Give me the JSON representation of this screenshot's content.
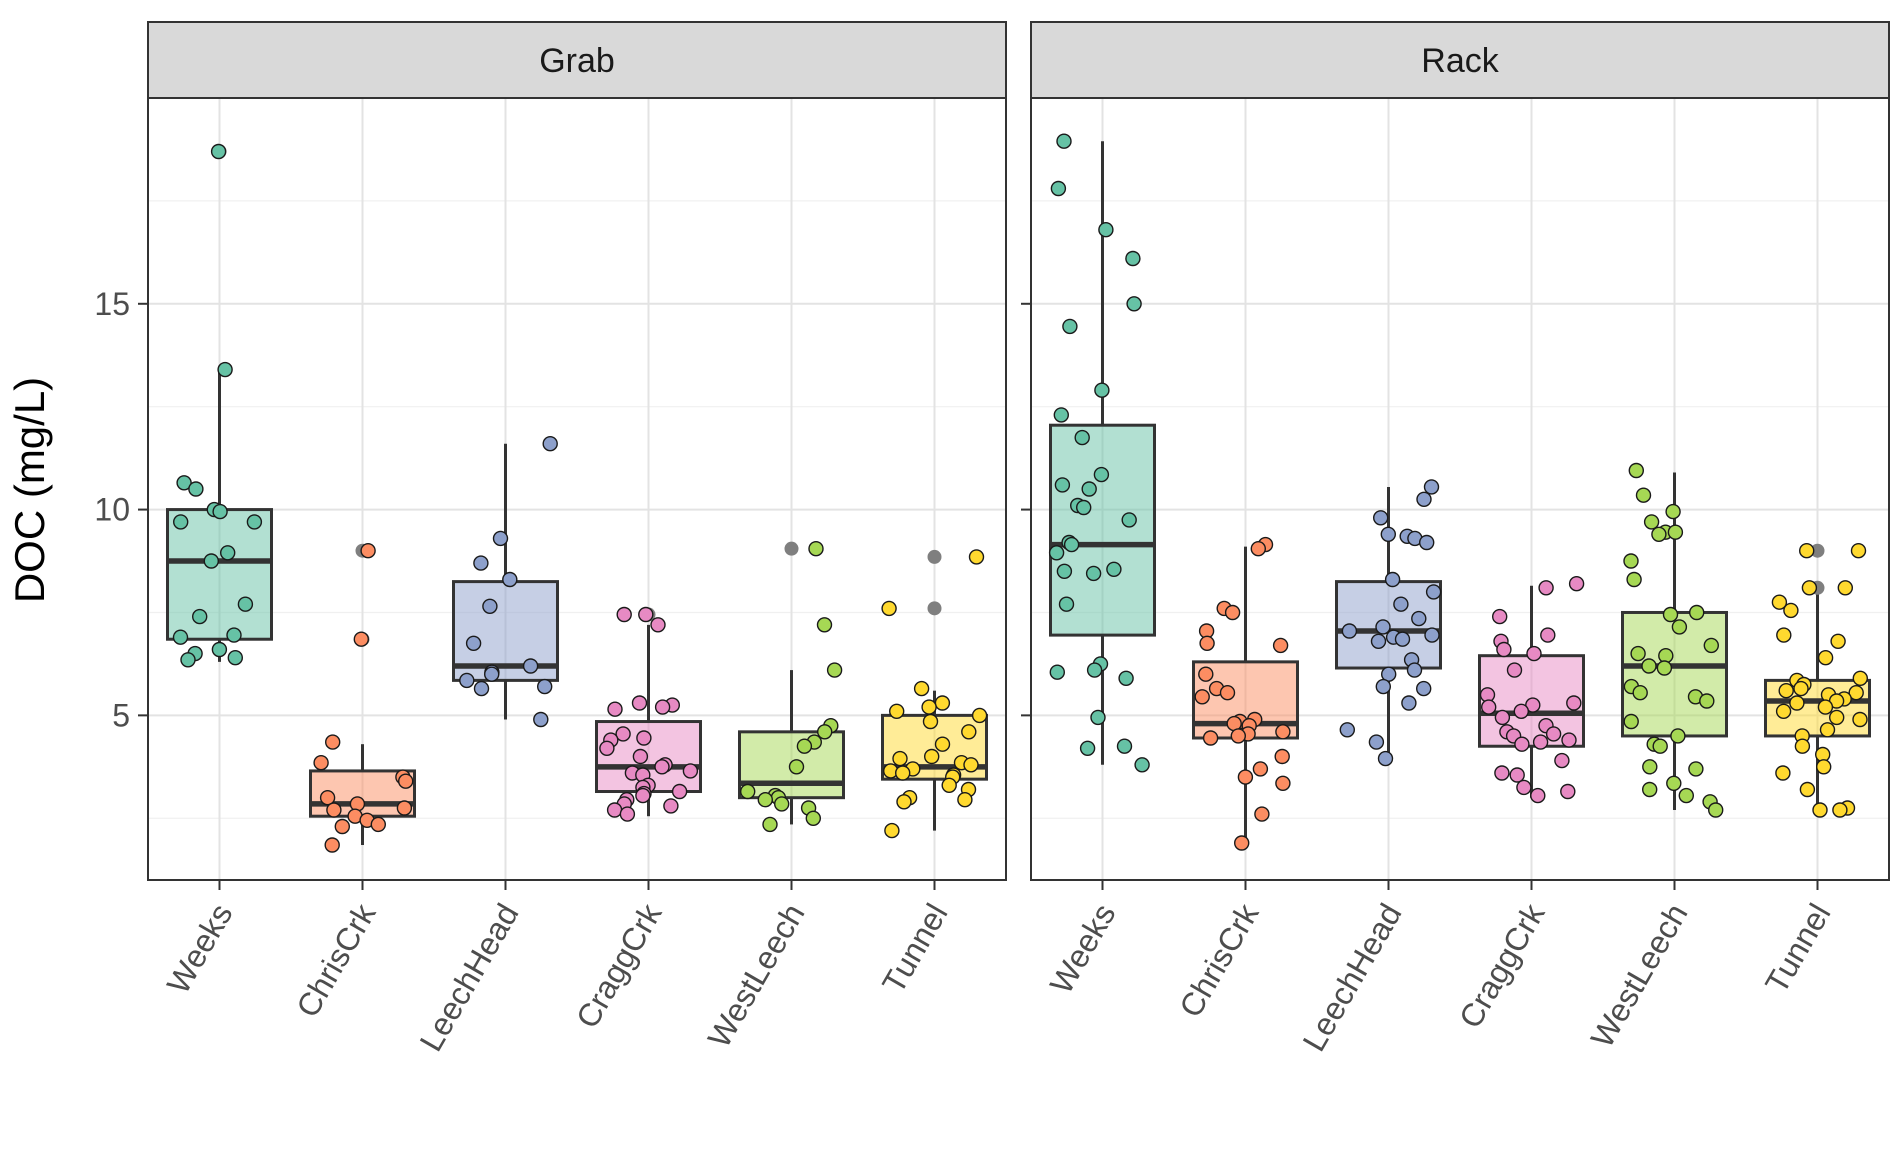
{
  "chart_data": {
    "type": "boxplot",
    "ylabel": "DOC (mg/L)",
    "xlabel": "",
    "ylim": [
      1.0,
      20.0
    ],
    "yticks": [
      5,
      10,
      15
    ],
    "grid": true,
    "categories": [
      "Weeks",
      "ChrisCrk",
      "LeechHead",
      "CraggCrk",
      "WestLeech",
      "Tunnel"
    ],
    "colors": [
      "#66c2a5",
      "#fc8d62",
      "#8da0cb",
      "#e78ac3",
      "#a6d854",
      "#ffd92f"
    ],
    "outlier_color": "#7f7f7f",
    "panels": [
      {
        "title": "Grab",
        "groups": [
          {
            "name": "Weeks",
            "q1": 6.85,
            "median": 8.75,
            "q3": 10.0,
            "whisker_low": 6.3,
            "whisker_high": 13.4,
            "outliers": [
              18.7
            ],
            "points": [
              18.7,
              13.4,
              10.65,
              10.5,
              10.0,
              9.95,
              9.7,
              9.7,
              8.95,
              8.75,
              7.4,
              7.7,
              6.95,
              6.9,
              6.6,
              6.5,
              6.4,
              6.35
            ]
          },
          {
            "name": "ChrisCrk",
            "q1": 2.55,
            "median": 2.85,
            "q3": 3.65,
            "whisker_low": 1.85,
            "whisker_high": 4.3,
            "outliers": [
              9.0,
              6.85
            ],
            "points": [
              9.0,
              6.85,
              4.35,
              3.85,
              3.5,
              3.4,
              3.0,
              2.85,
              2.75,
              2.7,
              2.55,
              2.45,
              2.35,
              2.3,
              1.85
            ]
          },
          {
            "name": "LeechHead",
            "q1": 5.85,
            "median": 6.2,
            "q3": 8.25,
            "whisker_low": 4.9,
            "whisker_high": 11.6,
            "outliers": [],
            "points": [
              11.6,
              9.3,
              8.7,
              8.3,
              7.65,
              6.75,
              6.2,
              6.05,
              6.0,
              5.85,
              5.7,
              5.65,
              4.9
            ]
          },
          {
            "name": "CraggCrk",
            "q1": 3.15,
            "median": 3.75,
            "q3": 4.85,
            "whisker_low": 2.55,
            "whisker_high": 7.2,
            "outliers": [
              7.45
            ],
            "points": [
              7.45,
              7.45,
              7.2,
              5.3,
              5.25,
              5.2,
              5.15,
              4.55,
              4.45,
              4.4,
              4.2,
              4.0,
              3.8,
              3.75,
              3.65,
              3.6,
              3.55,
              3.3,
              3.25,
              3.15,
              3.1,
              3.05,
              2.95,
              2.85,
              2.8,
              2.7,
              2.6
            ]
          },
          {
            "name": "WestLeech",
            "q1": 3.0,
            "median": 3.35,
            "q3": 4.6,
            "whisker_low": 2.35,
            "whisker_high": 6.1,
            "outliers": [
              9.05
            ],
            "points": [
              9.05,
              7.2,
              6.1,
              4.75,
              4.6,
              4.35,
              4.25,
              3.75,
              3.15,
              3.05,
              3.0,
              2.95,
              2.85,
              2.75,
              2.5,
              2.35
            ]
          },
          {
            "name": "Tunnel",
            "q1": 3.45,
            "median": 3.75,
            "q3": 5.0,
            "whisker_low": 2.2,
            "whisker_high": 5.6,
            "outliers": [
              8.85,
              7.6
            ],
            "points": [
              8.85,
              7.6,
              5.65,
              5.3,
              5.2,
              5.1,
              5.0,
              4.85,
              4.6,
              4.3,
              4.0,
              3.95,
              3.85,
              3.8,
              3.7,
              3.65,
              3.6,
              3.55,
              3.5,
              3.3,
              3.2,
              3.0,
              2.95,
              2.9,
              2.2
            ]
          }
        ]
      },
      {
        "title": "Rack",
        "groups": [
          {
            "name": "Weeks",
            "q1": 6.95,
            "median": 9.15,
            "q3": 12.05,
            "whisker_low": 3.8,
            "whisker_high": 18.95,
            "outliers": [],
            "points": [
              18.95,
              17.8,
              16.8,
              16.1,
              15.0,
              14.45,
              12.9,
              12.3,
              11.75,
              10.85,
              10.6,
              10.5,
              10.1,
              10.05,
              9.75,
              9.2,
              9.15,
              8.95,
              8.55,
              8.5,
              8.45,
              7.7,
              6.25,
              6.1,
              6.05,
              5.9,
              4.95,
              4.25,
              4.2,
              3.8
            ]
          },
          {
            "name": "ChrisCrk",
            "q1": 4.45,
            "median": 4.8,
            "q3": 6.3,
            "whisker_low": 1.9,
            "whisker_high": 9.1,
            "outliers": [],
            "points": [
              9.15,
              9.05,
              7.6,
              7.5,
              7.05,
              6.7,
              6.75,
              6.0,
              5.65,
              5.55,
              5.45,
              4.9,
              4.85,
              4.8,
              4.75,
              4.6,
              4.55,
              4.5,
              4.45,
              4.0,
              3.7,
              3.5,
              3.35,
              2.6,
              1.9
            ]
          },
          {
            "name": "LeechHead",
            "q1": 6.15,
            "median": 7.05,
            "q3": 8.25,
            "whisker_low": 3.95,
            "whisker_high": 10.55,
            "outliers": [],
            "points": [
              10.55,
              10.25,
              9.8,
              9.4,
              9.35,
              9.3,
              9.2,
              8.3,
              8.0,
              7.7,
              7.35,
              7.15,
              7.05,
              6.95,
              6.9,
              6.85,
              6.8,
              6.35,
              6.1,
              6.0,
              5.7,
              5.65,
              5.3,
              4.65,
              4.35,
              3.95
            ]
          },
          {
            "name": "CraggCrk",
            "q1": 4.25,
            "median": 5.05,
            "q3": 6.45,
            "whisker_low": 3.0,
            "whisker_high": 8.15,
            "outliers": [],
            "points": [
              8.2,
              8.1,
              7.4,
              6.95,
              6.8,
              6.6,
              6.5,
              6.1,
              5.5,
              5.3,
              5.25,
              5.2,
              5.1,
              4.95,
              4.75,
              4.6,
              4.55,
              4.5,
              4.4,
              4.35,
              4.3,
              3.9,
              3.6,
              3.55,
              3.25,
              3.15,
              3.05
            ]
          },
          {
            "name": "WestLeech",
            "q1": 4.5,
            "median": 6.2,
            "q3": 7.5,
            "whisker_low": 2.7,
            "whisker_high": 10.9,
            "outliers": [],
            "points": [
              10.95,
              10.35,
              9.95,
              9.7,
              9.45,
              9.45,
              9.4,
              8.75,
              8.3,
              7.5,
              7.45,
              7.15,
              6.7,
              6.5,
              6.45,
              6.2,
              6.15,
              5.7,
              5.55,
              5.45,
              5.35,
              4.85,
              4.5,
              4.3,
              4.25,
              3.75,
              3.7,
              3.35,
              3.2,
              3.05,
              2.9,
              2.7
            ]
          },
          {
            "name": "Tunnel",
            "q1": 4.5,
            "median": 5.35,
            "q3": 5.85,
            "whisker_low": 2.7,
            "whisker_high": 8.1,
            "outliers": [
              9.0,
              8.1
            ],
            "points": [
              9.0,
              9.0,
              8.1,
              8.1,
              7.75,
              7.55,
              6.95,
              6.8,
              6.4,
              5.9,
              5.85,
              5.75,
              5.65,
              5.6,
              5.55,
              5.5,
              5.4,
              5.35,
              5.3,
              5.2,
              5.1,
              4.95,
              4.9,
              4.65,
              4.5,
              4.25,
              4.05,
              3.75,
              3.6,
              3.2,
              2.75,
              2.7,
              2.7
            ]
          }
        ]
      }
    ]
  }
}
